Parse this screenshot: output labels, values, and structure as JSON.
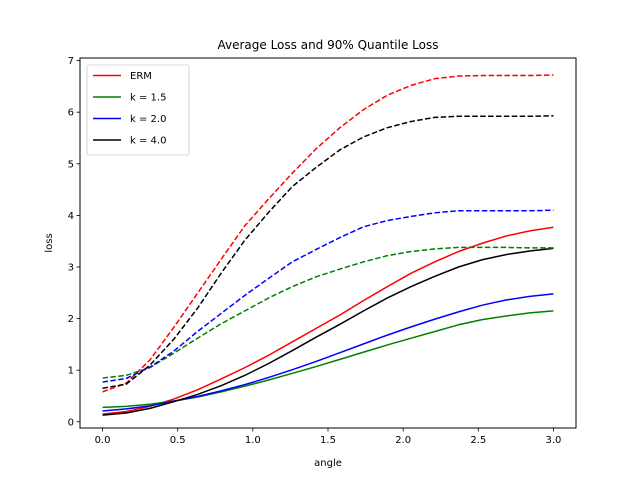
{
  "chart_data": {
    "type": "line",
    "title": "Average Loss and 90% Quantile Loss",
    "xlabel": "angle",
    "ylabel": "loss",
    "xlim": [
      -0.15,
      3.15
    ],
    "ylim": [
      -0.12,
      7.05
    ],
    "xticks": [
      0.0,
      0.5,
      1.0,
      1.5,
      2.0,
      2.5,
      3.0
    ],
    "xtick_labels": [
      "0.0",
      "0.5",
      "1.0",
      "1.5",
      "2.0",
      "2.5",
      "3.0"
    ],
    "yticks": [
      0,
      1,
      2,
      3,
      4,
      5,
      6,
      7
    ],
    "ytick_labels": [
      "0",
      "1",
      "2",
      "3",
      "4",
      "5",
      "6",
      "7"
    ],
    "grid": false,
    "legend": {
      "placement": "top-left"
    },
    "x": [
      0.0,
      0.158,
      0.316,
      0.474,
      0.632,
      0.789,
      0.947,
      1.105,
      1.263,
      1.421,
      1.579,
      1.737,
      1.895,
      2.053,
      2.211,
      2.368,
      2.526,
      2.684,
      2.842,
      3.0
    ],
    "series": [
      {
        "name": "ERM",
        "color": "#ff0000",
        "dashed": false,
        "in_legend": true,
        "values": [
          0.15,
          0.2,
          0.3,
          0.44,
          0.62,
          0.83,
          1.05,
          1.29,
          1.55,
          1.81,
          2.07,
          2.35,
          2.62,
          2.88,
          3.1,
          3.3,
          3.46,
          3.6,
          3.7,
          3.77
        ]
      },
      {
        "name": "k = 1.5",
        "color": "#008000",
        "dashed": false,
        "in_legend": true,
        "values": [
          0.28,
          0.3,
          0.34,
          0.4,
          0.48,
          0.58,
          0.69,
          0.81,
          0.94,
          1.07,
          1.21,
          1.35,
          1.49,
          1.62,
          1.75,
          1.88,
          1.98,
          2.05,
          2.11,
          2.15
        ]
      },
      {
        "name": "k = 2.0",
        "color": "#0000ff",
        "dashed": false,
        "in_legend": true,
        "values": [
          0.21,
          0.25,
          0.31,
          0.4,
          0.49,
          0.6,
          0.72,
          0.86,
          1.01,
          1.17,
          1.34,
          1.51,
          1.68,
          1.84,
          1.99,
          2.13,
          2.26,
          2.36,
          2.43,
          2.48
        ]
      },
      {
        "name": "k = 4.0",
        "color": "#000000",
        "dashed": false,
        "in_legend": true,
        "values": [
          0.13,
          0.17,
          0.26,
          0.39,
          0.53,
          0.7,
          0.9,
          1.13,
          1.38,
          1.64,
          1.89,
          2.15,
          2.4,
          2.62,
          2.82,
          3.0,
          3.14,
          3.24,
          3.31,
          3.36
        ]
      },
      {
        "name": "ERM 90% quantile",
        "color": "#ff0000",
        "dashed": true,
        "in_legend": false,
        "values": [
          0.58,
          0.75,
          1.2,
          1.83,
          2.49,
          3.15,
          3.8,
          4.32,
          4.82,
          5.29,
          5.7,
          6.05,
          6.33,
          6.52,
          6.65,
          6.7,
          6.71,
          6.71,
          6.71,
          6.72
        ]
      },
      {
        "name": "k = 1.5 90% quantile",
        "color": "#008000",
        "dashed": true,
        "in_legend": false,
        "values": [
          0.85,
          0.9,
          1.05,
          1.33,
          1.62,
          1.9,
          2.15,
          2.4,
          2.62,
          2.81,
          2.96,
          3.1,
          3.22,
          3.3,
          3.35,
          3.38,
          3.38,
          3.38,
          3.37,
          3.37
        ]
      },
      {
        "name": "k = 2.0 90% quantile",
        "color": "#0000ff",
        "dashed": true,
        "in_legend": false,
        "values": [
          0.77,
          0.84,
          1.06,
          1.37,
          1.75,
          2.1,
          2.45,
          2.78,
          3.1,
          3.34,
          3.57,
          3.78,
          3.9,
          3.98,
          4.05,
          4.09,
          4.09,
          4.09,
          4.09,
          4.1
        ]
      },
      {
        "name": "k = 4.0 90% quantile",
        "color": "#000000",
        "dashed": true,
        "in_legend": false,
        "values": [
          0.65,
          0.73,
          1.1,
          1.6,
          2.2,
          2.88,
          3.52,
          4.06,
          4.56,
          4.93,
          5.27,
          5.52,
          5.7,
          5.82,
          5.9,
          5.92,
          5.92,
          5.92,
          5.92,
          5.93
        ]
      }
    ]
  }
}
